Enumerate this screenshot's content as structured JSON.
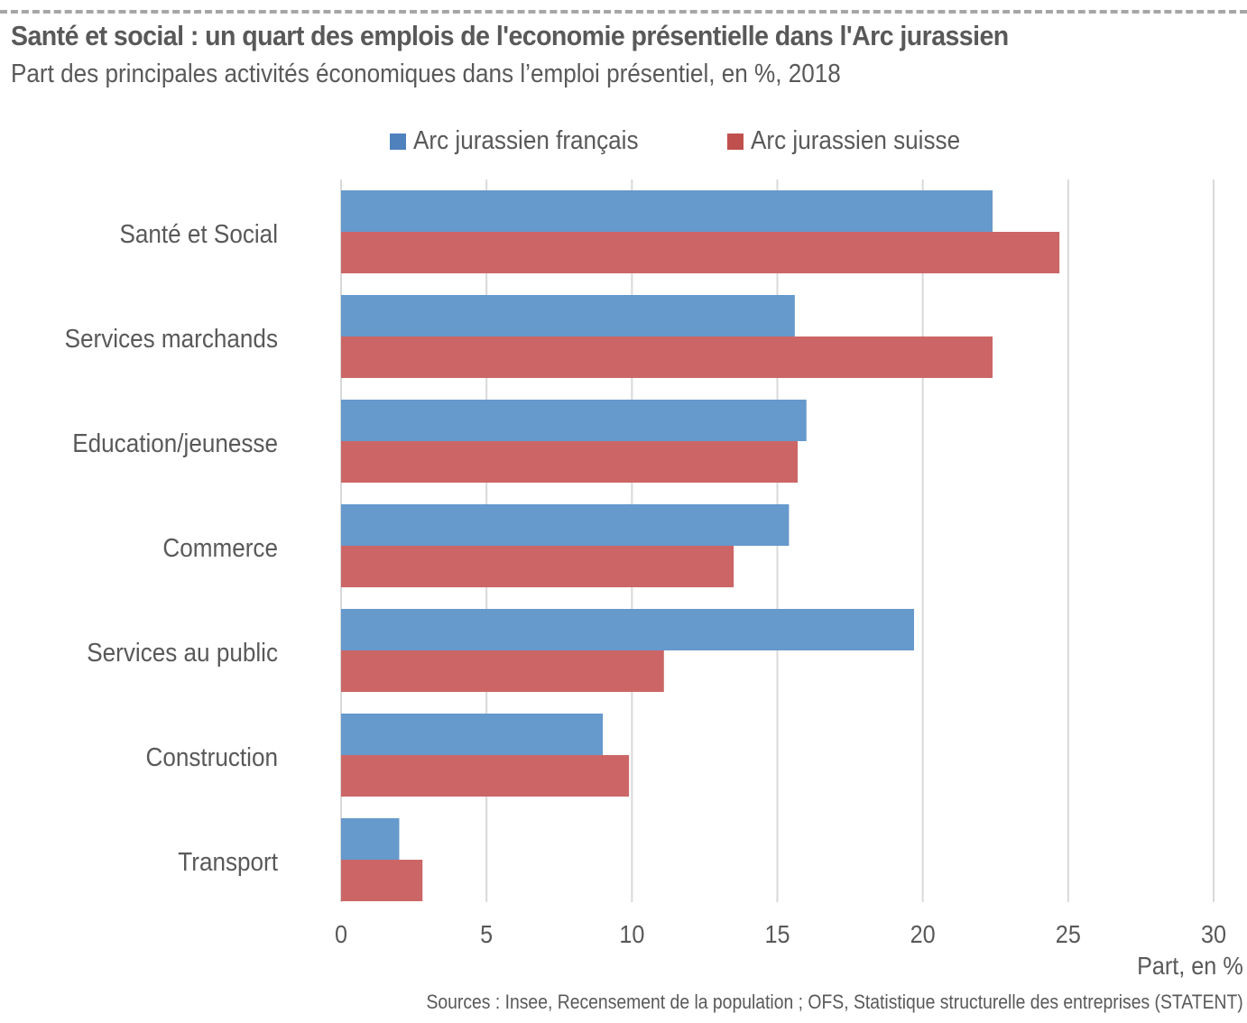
{
  "header": {
    "title": "Santé et social : un quart des emplois de l'economie présentielle dans l'Arc jurassien",
    "subtitle": "Part des principales activités économiques dans l’emploi présentiel, en %, 2018"
  },
  "footer": {
    "source": "Sources : Insee, Recensement de la population ; OFS, Statistique structurelle des entreprises (STATENT)"
  },
  "colors": {
    "series_fr": "#6699cc",
    "series_ch": "#cc6666",
    "legend_fr": "#4f81bd",
    "legend_ch": "#c0504d",
    "grid": "#d9d9d9",
    "text": "#595959"
  },
  "chart_data": {
    "type": "bar",
    "orientation": "horizontal",
    "title": "Santé et social : un quart des emplois de l'economie présentielle dans l'Arc jurassien",
    "subtitle": "Part des principales activités économiques dans l’emploi présentiel, en %, 2018",
    "xlabel": "Part, en %",
    "ylabel": "",
    "xlim": [
      0,
      30
    ],
    "xticks": [
      0,
      5,
      10,
      15,
      20,
      25,
      30
    ],
    "grid": true,
    "legend_position": "top-center",
    "categories": [
      "Santé et Social",
      "Services marchands",
      "Education/jeunesse",
      "Commerce",
      "Services au public",
      "Construction",
      "Transport"
    ],
    "series": [
      {
        "name": "Arc jurassien français",
        "values": [
          22.4,
          15.6,
          16.0,
          15.4,
          19.7,
          9.0,
          2.0
        ]
      },
      {
        "name": "Arc jurassien suisse",
        "values": [
          24.7,
          22.4,
          15.7,
          13.5,
          11.1,
          9.9,
          2.8
        ]
      }
    ]
  }
}
